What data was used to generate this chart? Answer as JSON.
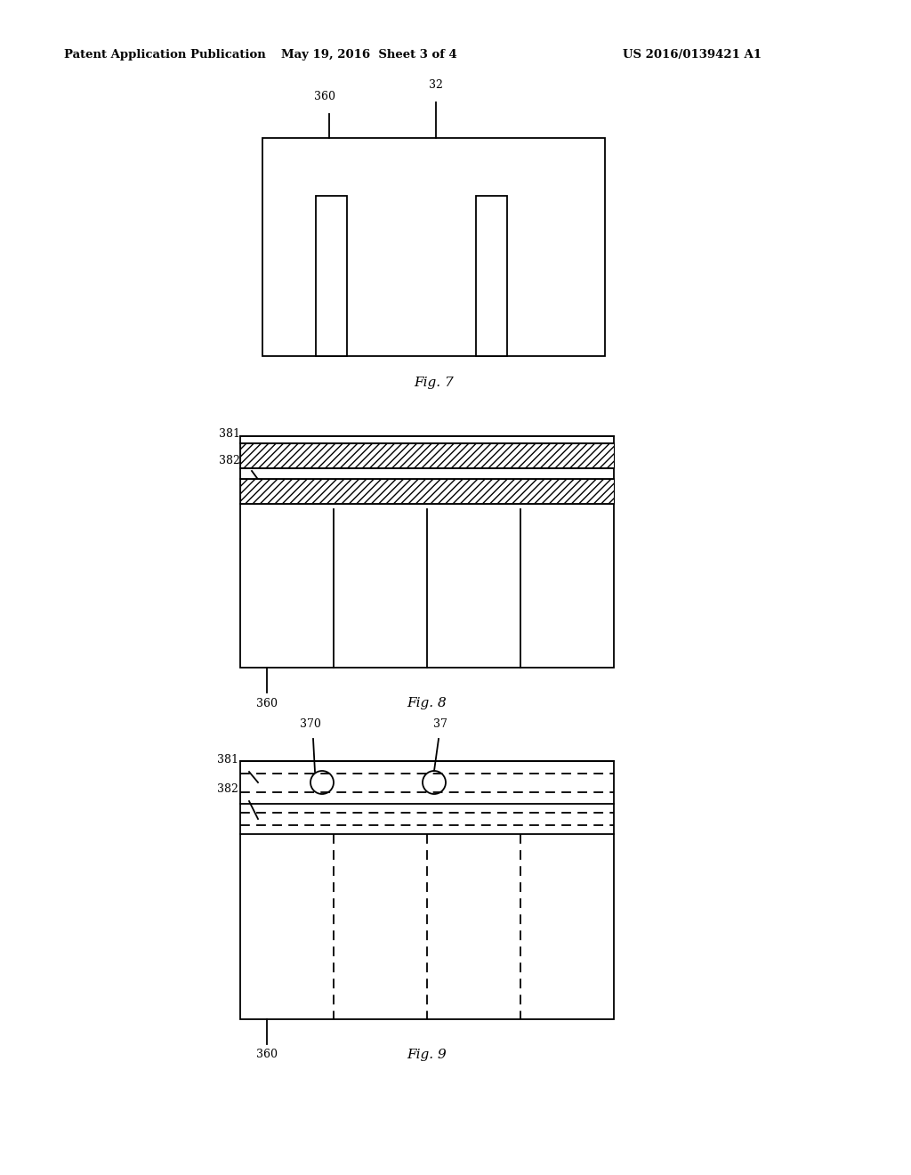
{
  "bg_color": "#ffffff",
  "header_left": "Patent Application Publication",
  "header_center": "May 19, 2016  Sheet 3 of 4",
  "header_right": "US 2016/0139421 A1",
  "fig7_caption": "Fig. 7",
  "fig8_caption": "Fig. 8",
  "fig9_caption": "Fig. 9",
  "label_360_fig7": "360",
  "label_32": "32",
  "label_360_fig8": "360",
  "label_381_fig8": "381",
  "label_382_fig8": "382",
  "label_360_fig9": "360",
  "label_381_fig9": "381",
  "label_382_fig9": "382",
  "label_370": "370",
  "label_37": "37"
}
